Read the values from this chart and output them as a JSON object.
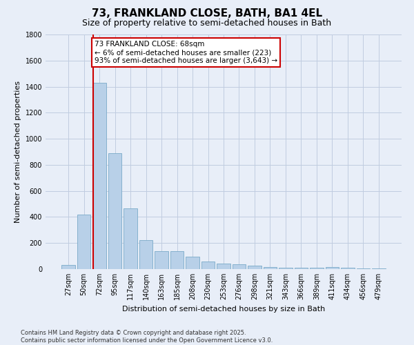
{
  "title": "73, FRANKLAND CLOSE, BATH, BA1 4EL",
  "subtitle": "Size of property relative to semi-detached houses in Bath",
  "xlabel": "Distribution of semi-detached houses by size in Bath",
  "ylabel": "Number of semi-detached properties",
  "categories": [
    "27sqm",
    "50sqm",
    "72sqm",
    "95sqm",
    "117sqm",
    "140sqm",
    "163sqm",
    "185sqm",
    "208sqm",
    "230sqm",
    "253sqm",
    "276sqm",
    "298sqm",
    "321sqm",
    "343sqm",
    "366sqm",
    "389sqm",
    "411sqm",
    "434sqm",
    "456sqm",
    "479sqm"
  ],
  "values": [
    30,
    420,
    1430,
    890,
    465,
    225,
    140,
    140,
    95,
    58,
    42,
    35,
    25,
    18,
    13,
    10,
    8,
    15,
    8,
    4,
    3
  ],
  "bar_color": "#b8d0e8",
  "bar_edge_color": "#7aaac8",
  "background_color": "#e8eef8",
  "grid_color": "#c0cce0",
  "vline_color": "#cc0000",
  "vline_pos": 1.58,
  "annotation_text": "73 FRANKLAND CLOSE: 68sqm\n← 6% of semi-detached houses are smaller (223)\n93% of semi-detached houses are larger (3,643) →",
  "annotation_box_color": "#ffffff",
  "annotation_box_edge": "#cc0000",
  "ylim": [
    0,
    1800
  ],
  "yticks": [
    0,
    200,
    400,
    600,
    800,
    1000,
    1200,
    1400,
    1600,
    1800
  ],
  "footnote": "Contains HM Land Registry data © Crown copyright and database right 2025.\nContains public sector information licensed under the Open Government Licence v3.0.",
  "title_fontsize": 11,
  "subtitle_fontsize": 9,
  "tick_fontsize": 7,
  "ylabel_fontsize": 8,
  "xlabel_fontsize": 8,
  "annot_fontsize": 7.5,
  "footnote_fontsize": 6
}
